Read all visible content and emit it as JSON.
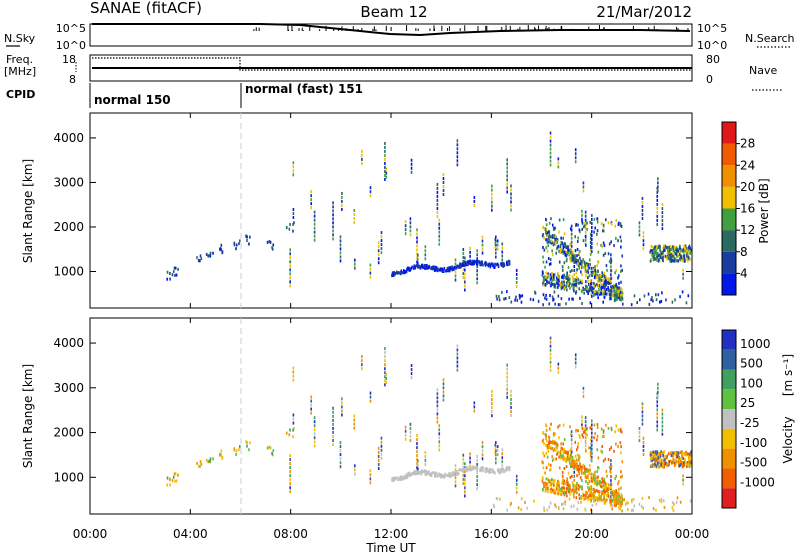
{
  "header": {
    "station": "SANAE (fitACF)",
    "beam": "Beam 12",
    "date": "21/Mar/2012"
  },
  "aux_panels": {
    "nsky_label": "N.Sky",
    "nsearch_label": "N.Search",
    "noise_ticks": [
      "10^5",
      "10^0"
    ],
    "freq_label": "Freq.",
    "freq_unit": "[MHz]",
    "freq_ticks": [
      "18",
      "8"
    ],
    "nave_label": "Nave",
    "nave_ticks": [
      "80",
      "0"
    ],
    "cpid_label": "CPID",
    "cpid_segments": [
      {
        "label": "normal 150",
        "start_hour": 0,
        "end_hour": 6
      },
      {
        "label": "normal (fast) 151",
        "start_hour": 6,
        "end_hour": 24
      }
    ]
  },
  "colors": {
    "power_scale": [
      "#0018e8",
      "#1a3ca0",
      "#2c6a60",
      "#40a040",
      "#f0c000",
      "#f09000",
      "#f05a00",
      "#e01818"
    ],
    "velocity_scale": [
      "#2030c0",
      "#3060a0",
      "#40a060",
      "#60c040",
      "#c0c0c0",
      "#f0c000",
      "#f09000",
      "#f06000",
      "#e02020"
    ]
  },
  "chart_data": [
    {
      "type": "heatmap",
      "name": "power",
      "ylabel": "Slant Range [km]",
      "ylim": [
        180,
        4560
      ],
      "xlim_hours": [
        0,
        24
      ],
      "y_ticks": [
        "1000",
        "2000",
        "3000",
        "4000"
      ],
      "colorbar_label": "Power [dB]",
      "colorbar_ticks": [
        "4",
        "8",
        "12",
        "16",
        "20",
        "24",
        "28"
      ],
      "colorbar_range": [
        0,
        32
      ]
    },
    {
      "type": "heatmap",
      "name": "velocity",
      "ylabel": "Slant Range [km]",
      "ylim": [
        180,
        4560
      ],
      "xlim_hours": [
        0,
        24
      ],
      "y_ticks": [
        "1000",
        "2000",
        "3000",
        "4000"
      ],
      "colorbar_label": "Velocity",
      "colorbar_unit": "[m s⁻¹]",
      "colorbar_ticks": [
        "1000",
        "500",
        "100",
        "25",
        "-25",
        "-100",
        "-500",
        "-1000"
      ]
    }
  ],
  "x_axis": {
    "ticks": [
      "00:00",
      "04:00",
      "08:00",
      "12:00",
      "16:00",
      "20:00",
      "00:00"
    ],
    "label": "Time UT"
  }
}
